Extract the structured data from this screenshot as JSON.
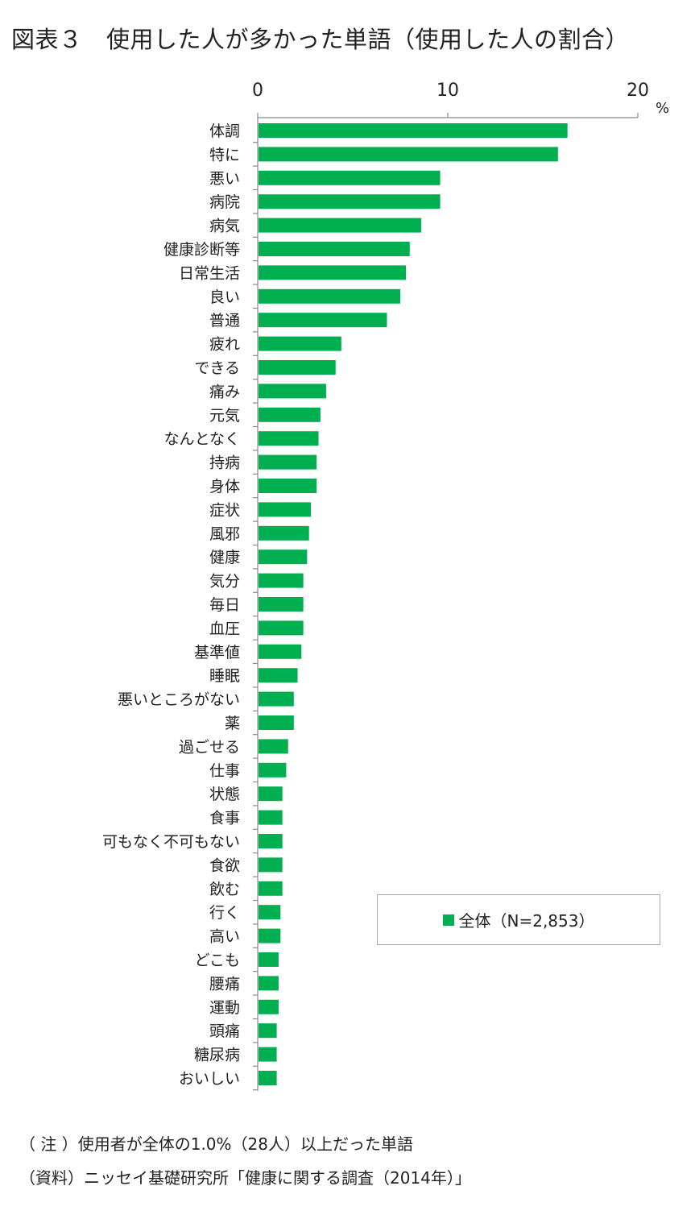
{
  "title": "図表３　使用した人が多かった単語（使用した人の割合）",
  "chart_data": {
    "type": "bar",
    "orientation": "horizontal",
    "title": "図表３　使用した人が多かった単語（使用した人の割合）",
    "xlim": [
      0,
      20
    ],
    "xticks": [
      0,
      10,
      20
    ],
    "xunit": "%",
    "grid": false,
    "legend_position": "lower-right",
    "bar_color": "#00b050",
    "categories": [
      "体調",
      "特に",
      "悪い",
      "病院",
      "病気",
      "健康診断等",
      "日常生活",
      "良い",
      "普通",
      "疲れ",
      "できる",
      "痛み",
      "元気",
      "なんとなく",
      "持病",
      "身体",
      "症状",
      "風邪",
      "健康",
      "気分",
      "毎日",
      "血圧",
      "基準値",
      "睡眠",
      "悪いところがない",
      "薬",
      "過ごせる",
      "仕事",
      "状態",
      "食事",
      "可もなく不可もない",
      "食欲",
      "飲む",
      "行く",
      "高い",
      "どこも",
      "腰痛",
      "運動",
      "頭痛",
      "糖尿病",
      "おいしい"
    ],
    "series": [
      {
        "name": "全体（N=2,853）",
        "values": [
          16.3,
          15.8,
          9.6,
          9.6,
          8.6,
          8.0,
          7.8,
          7.5,
          6.8,
          4.4,
          4.1,
          3.6,
          3.3,
          3.2,
          3.1,
          3.1,
          2.8,
          2.7,
          2.6,
          2.4,
          2.4,
          2.4,
          2.3,
          2.1,
          1.9,
          1.9,
          1.6,
          1.5,
          1.3,
          1.3,
          1.3,
          1.3,
          1.3,
          1.2,
          1.2,
          1.1,
          1.1,
          1.1,
          1.0,
          1.0,
          1.0
        ]
      }
    ]
  },
  "notes": [
    "（ 注 ）使用者が全体の1.0%（28人）以上だった単語",
    "（資料）ニッセイ基礎研究所「健康に関する調査（2014年）」"
  ]
}
